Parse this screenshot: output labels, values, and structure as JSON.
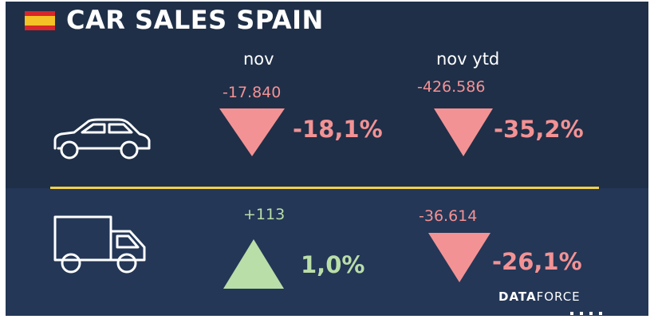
{
  "header": {
    "title": "CAR SALES SPAIN",
    "flag": "spain-flag",
    "flag_colors": [
      "#d8262b",
      "#f4c126"
    ]
  },
  "columns": {
    "month": "nov",
    "ytd": "nov ytd"
  },
  "colors": {
    "background": "#1f2f48",
    "lower_band": "#243757",
    "negative": "#f39294",
    "positive": "#b9dea8",
    "divider": "#f2d046"
  },
  "rows": [
    {
      "vehicle": "car-icon",
      "month": {
        "change": "-17.840",
        "percent": "-18,1%",
        "direction": "down"
      },
      "ytd": {
        "change": "-426.586",
        "percent": "-35,2%",
        "direction": "down"
      }
    },
    {
      "vehicle": "truck-icon",
      "month": {
        "change": "+113",
        "percent": "1,0%",
        "direction": "up"
      },
      "ytd": {
        "change": "-36.614",
        "percent": "-26,1%",
        "direction": "down"
      }
    }
  ],
  "brand": {
    "bold": "DATA",
    "light": "FORCE"
  }
}
